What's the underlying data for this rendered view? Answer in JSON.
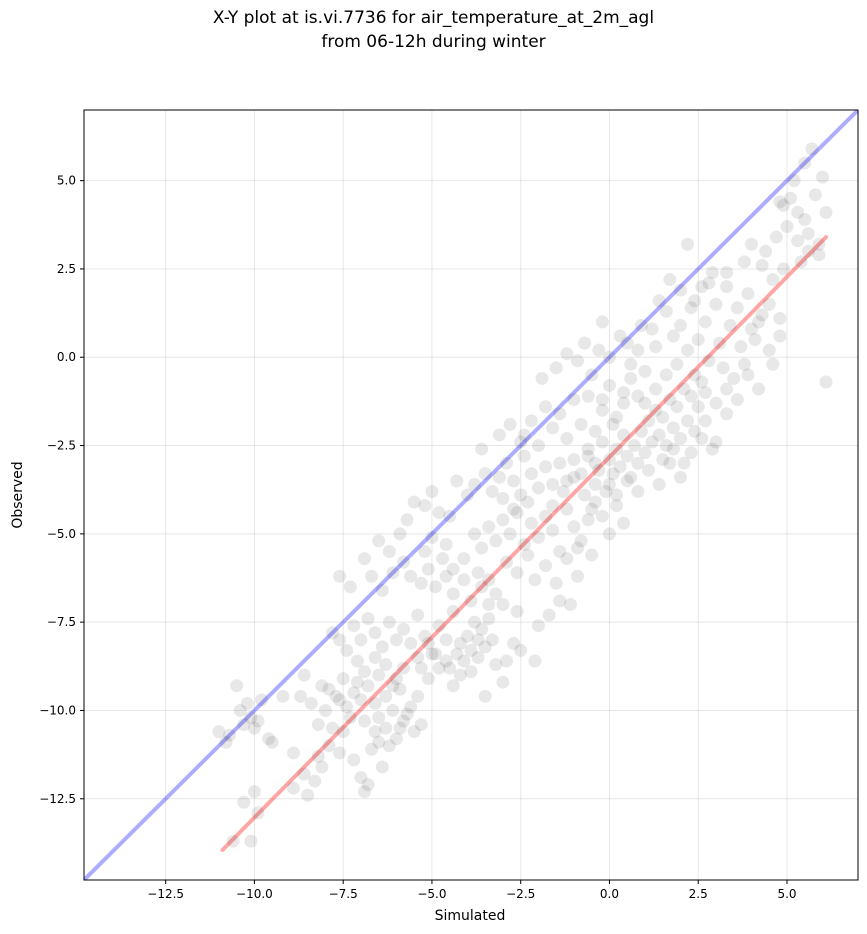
{
  "title_line1": "X-Y plot at is.vi.7736 for air_temperature_at_2m_agl",
  "title_line2": "from 06-12h during winter",
  "chart_data": {
    "type": "scatter",
    "xlabel": "Simulated",
    "ylabel": "Observed",
    "xlim": [
      -14.8,
      7.0
    ],
    "ylim": [
      -14.8,
      7.0
    ],
    "xticks": [
      -12.5,
      -10.0,
      -7.5,
      -5.0,
      -2.5,
      0.0,
      2.5,
      5.0
    ],
    "yticks": [
      -12.5,
      -10.0,
      -7.5,
      -5.0,
      -2.5,
      0.0,
      2.5,
      5.0
    ],
    "xtick_labels": [
      "−12.5",
      "−10.0",
      "−7.5",
      "−5.0",
      "−2.5",
      "0.0",
      "2.5",
      "5.0"
    ],
    "ytick_labels": [
      "−12.5",
      "−10.0",
      "−7.5",
      "−5.0",
      "−2.5",
      "0.0",
      "2.5",
      "5.0"
    ],
    "grid": true,
    "point_color": "#000000",
    "point_alpha": 0.09,
    "one_to_one_line": {
      "color": "#0000ff",
      "alpha": 0.32,
      "x": [
        -14.8,
        7.0
      ],
      "y": [
        -14.8,
        7.0
      ]
    },
    "fit_line": {
      "color": "#ff0000",
      "alpha": 0.35,
      "x": [
        -10.9,
        6.1
      ],
      "y": [
        -13.95,
        3.4
      ]
    },
    "points": [
      [
        -11.0,
        -10.6
      ],
      [
        -10.8,
        -10.9
      ],
      [
        -10.7,
        -10.7
      ],
      [
        -10.5,
        -9.3
      ],
      [
        -10.4,
        -10.0
      ],
      [
        -10.3,
        -10.4
      ],
      [
        -10.2,
        -9.8
      ],
      [
        -10.1,
        -10.2
      ],
      [
        -10.0,
        -10.5
      ],
      [
        -9.9,
        -10.3
      ],
      [
        -9.8,
        -9.7
      ],
      [
        -9.6,
        -10.8
      ],
      [
        -9.5,
        -10.9
      ],
      [
        -9.2,
        -9.6
      ],
      [
        -8.9,
        -11.2
      ],
      [
        -8.7,
        -9.6
      ],
      [
        -10.3,
        -12.6
      ],
      [
        -10.1,
        -13.7
      ],
      [
        -10.6,
        -13.7
      ],
      [
        -10.0,
        -12.3
      ],
      [
        -9.9,
        -12.9
      ],
      [
        -8.9,
        -12.2
      ],
      [
        -8.5,
        -12.4
      ],
      [
        -8.3,
        -12.0
      ],
      [
        -8.6,
        -11.8
      ],
      [
        -8.2,
        -11.3
      ],
      [
        -8.1,
        -11.6
      ],
      [
        -7.9,
        -11.0
      ],
      [
        -7.8,
        -10.5
      ],
      [
        -7.6,
        -11.2
      ],
      [
        -7.5,
        -10.6
      ],
      [
        -7.3,
        -10.2
      ],
      [
        -7.2,
        -11.4
      ],
      [
        -7.0,
        -11.9
      ],
      [
        -6.9,
        -12.3
      ],
      [
        -6.8,
        -12.1
      ],
      [
        -6.7,
        -11.1
      ],
      [
        -6.6,
        -10.6
      ],
      [
        -6.5,
        -10.9
      ],
      [
        -6.4,
        -11.6
      ],
      [
        -6.2,
        -11.0
      ],
      [
        -6.0,
        -10.8
      ],
      [
        -8.4,
        -9.8
      ],
      [
        -8.2,
        -10.4
      ],
      [
        -8.0,
        -10.0
      ],
      [
        -7.9,
        -9.4
      ],
      [
        -7.7,
        -9.6
      ],
      [
        -7.5,
        -9.1
      ],
      [
        -7.4,
        -9.9
      ],
      [
        -7.2,
        -9.5
      ],
      [
        -7.0,
        -9.7
      ],
      [
        -6.8,
        -9.3
      ],
      [
        -6.6,
        -9.8
      ],
      [
        -6.5,
        -10.2
      ],
      [
        -6.3,
        -9.6
      ],
      [
        -6.1,
        -10.0
      ],
      [
        -5.9,
        -9.4
      ],
      [
        -5.8,
        -10.3
      ],
      [
        -5.6,
        -9.9
      ],
      [
        -5.5,
        -10.6
      ],
      [
        -5.4,
        -9.6
      ],
      [
        -5.3,
        -10.4
      ],
      [
        -5.7,
        -10.1
      ],
      [
        -5.9,
        -10.5
      ],
      [
        -6.0,
        -9.1
      ],
      [
        -5.8,
        -8.8
      ],
      [
        -6.3,
        -8.7
      ],
      [
        -6.6,
        -8.5
      ],
      [
        -6.9,
        -8.9
      ],
      [
        -7.1,
        -8.6
      ],
      [
        -7.4,
        -8.3
      ],
      [
        -7.6,
        -8.0
      ],
      [
        -7.8,
        -7.8
      ],
      [
        -7.2,
        -7.6
      ],
      [
        -7.0,
        -8.0
      ],
      [
        -6.8,
        -7.4
      ],
      [
        -6.6,
        -7.8
      ],
      [
        -6.4,
        -8.2
      ],
      [
        -6.2,
        -7.5
      ],
      [
        -6.0,
        -8.0
      ],
      [
        -5.8,
        -7.7
      ],
      [
        -5.6,
        -8.1
      ],
      [
        -5.4,
        -7.3
      ],
      [
        -5.2,
        -7.9
      ],
      [
        -5.0,
        -8.4
      ],
      [
        -4.8,
        -7.6
      ],
      [
        -4.6,
        -8.0
      ],
      [
        -4.4,
        -7.2
      ],
      [
        -4.2,
        -8.1
      ],
      [
        -4.0,
        -7.9
      ],
      [
        -3.9,
        -8.3
      ],
      [
        -3.8,
        -7.5
      ],
      [
        -3.7,
        -8.0
      ],
      [
        -3.6,
        -7.7
      ],
      [
        -3.5,
        -8.2
      ],
      [
        -3.4,
        -7.4
      ],
      [
        -4.1,
        -8.6
      ],
      [
        -4.3,
        -8.4
      ],
      [
        -4.5,
        -8.8
      ],
      [
        -3.9,
        -8.9
      ],
      [
        -3.7,
        -8.5
      ],
      [
        -3.3,
        -8.0
      ],
      [
        -4.6,
        -8.6
      ],
      [
        -4.8,
        -8.8
      ],
      [
        -4.4,
        -9.3
      ],
      [
        -4.2,
        -9.0
      ],
      [
        -5.1,
        -9.1
      ],
      [
        -3.2,
        -8.7
      ],
      [
        -3.0,
        -9.2
      ],
      [
        -3.5,
        -9.6
      ],
      [
        -2.9,
        -8.6
      ],
      [
        -2.7,
        -8.1
      ],
      [
        -2.5,
        -8.3
      ],
      [
        -2.1,
        -8.6
      ],
      [
        -2.6,
        -7.2
      ],
      [
        -3.0,
        -7.0
      ],
      [
        -3.2,
        -6.7
      ],
      [
        -3.4,
        -7.0
      ],
      [
        -3.6,
        -6.5
      ],
      [
        -3.9,
        -6.9
      ],
      [
        -4.1,
        -6.3
      ],
      [
        -4.4,
        -6.7
      ],
      [
        -4.6,
        -6.2
      ],
      [
        -4.9,
        -6.5
      ],
      [
        -5.1,
        -6.0
      ],
      [
        -5.3,
        -6.4
      ],
      [
        -5.6,
        -6.2
      ],
      [
        -5.8,
        -5.8
      ],
      [
        -6.1,
        -6.1
      ],
      [
        -6.4,
        -6.6
      ],
      [
        -6.7,
        -6.2
      ],
      [
        -6.9,
        -5.7
      ],
      [
        -7.3,
        -6.5
      ],
      [
        -7.6,
        -6.2
      ],
      [
        -6.5,
        -5.2
      ],
      [
        -6.2,
        -5.5
      ],
      [
        -5.9,
        -5.0
      ],
      [
        -5.7,
        -4.6
      ],
      [
        -5.5,
        -4.1
      ],
      [
        -5.2,
        -4.2
      ],
      [
        -5.0,
        -3.8
      ],
      [
        -4.8,
        -4.4
      ],
      [
        -4.5,
        -4.5
      ],
      [
        -4.3,
        -3.5
      ],
      [
        -4.0,
        -3.9
      ],
      [
        -3.8,
        -3.6
      ],
      [
        -3.5,
        -3.3
      ],
      [
        -3.3,
        -3.8
      ],
      [
        -3.1,
        -3.4
      ],
      [
        -2.9,
        -3.0
      ],
      [
        -2.7,
        -3.5
      ],
      [
        -2.4,
        -2.8
      ],
      [
        -2.2,
        -3.3
      ],
      [
        -2.0,
        -3.7
      ],
      [
        -1.8,
        -3.1
      ],
      [
        -1.6,
        -3.6
      ],
      [
        -1.4,
        -3.0
      ],
      [
        -1.2,
        -3.5
      ],
      [
        -1.0,
        -2.9
      ],
      [
        -0.8,
        -3.3
      ],
      [
        -0.6,
        -2.8
      ],
      [
        -0.4,
        -3.6
      ],
      [
        -3.8,
        -5.0
      ],
      [
        -3.6,
        -5.4
      ],
      [
        -3.4,
        -4.8
      ],
      [
        -3.2,
        -5.2
      ],
      [
        -3.0,
        -4.6
      ],
      [
        -2.8,
        -5.0
      ],
      [
        -2.6,
        -4.4
      ],
      [
        -2.4,
        -5.3
      ],
      [
        -2.2,
        -4.7
      ],
      [
        -2.0,
        -5.1
      ],
      [
        -1.8,
        -4.5
      ],
      [
        -1.6,
        -4.9
      ],
      [
        -1.4,
        -5.5
      ],
      [
        -1.2,
        -4.3
      ],
      [
        -1.0,
        -4.8
      ],
      [
        -0.8,
        -5.2
      ],
      [
        -0.6,
        -4.6
      ],
      [
        -0.4,
        -4.1
      ],
      [
        -0.2,
        -4.5
      ],
      [
        0.0,
        -5.0
      ],
      [
        0.2,
        -4.2
      ],
      [
        0.4,
        -4.7
      ],
      [
        -2.9,
        -5.8
      ],
      [
        -2.6,
        -6.1
      ],
      [
        -2.3,
        -5.6
      ],
      [
        -2.1,
        -6.3
      ],
      [
        -1.8,
        -5.9
      ],
      [
        -1.5,
        -6.4
      ],
      [
        -1.2,
        -5.7
      ],
      [
        -0.9,
        -6.2
      ],
      [
        -1.4,
        -6.9
      ],
      [
        -1.7,
        -7.3
      ],
      [
        -2.0,
        -7.6
      ],
      [
        -1.1,
        -7.0
      ],
      [
        -0.9,
        -5.4
      ],
      [
        -0.5,
        -5.6
      ],
      [
        -2.4,
        -2.2
      ],
      [
        -2.2,
        -1.8
      ],
      [
        -2.0,
        -2.5
      ],
      [
        -1.8,
        -1.4
      ],
      [
        -1.6,
        -2.0
      ],
      [
        -1.4,
        -1.6
      ],
      [
        -1.2,
        -2.3
      ],
      [
        -1.0,
        -1.2
      ],
      [
        -0.8,
        -1.9
      ],
      [
        -0.6,
        -1.1
      ],
      [
        -0.4,
        -2.1
      ],
      [
        -0.2,
        -1.5
      ],
      [
        0.0,
        -0.8
      ],
      [
        0.2,
        -1.7
      ],
      [
        0.4,
        -1.3
      ],
      [
        0.6,
        -0.6
      ],
      [
        0.8,
        -1.1
      ],
      [
        1.0,
        -0.4
      ],
      [
        -1.9,
        -0.6
      ],
      [
        -1.5,
        -0.3
      ],
      [
        -1.2,
        0.1
      ],
      [
        -0.7,
        0.4
      ],
      [
        -0.2,
        1.0
      ],
      [
        0.3,
        0.6
      ],
      [
        0.8,
        0.2
      ],
      [
        1.2,
        0.8
      ],
      [
        1.6,
        1.3
      ],
      [
        2.0,
        0.9
      ],
      [
        2.4,
        1.6
      ],
      [
        2.8,
        2.1
      ],
      [
        -0.6,
        -2.6
      ],
      [
        -0.4,
        -3.0
      ],
      [
        -0.2,
        -2.4
      ],
      [
        0.0,
        -2.9
      ],
      [
        0.1,
        -3.3
      ],
      [
        0.2,
        -2.6
      ],
      [
        0.3,
        -3.1
      ],
      [
        0.4,
        -2.2
      ],
      [
        0.5,
        -2.8
      ],
      [
        0.6,
        -3.4
      ],
      [
        0.7,
        -2.5
      ],
      [
        0.8,
        -3.0
      ],
      [
        0.9,
        -2.1
      ],
      [
        1.0,
        -2.7
      ],
      [
        1.1,
        -1.8
      ],
      [
        1.2,
        -2.4
      ],
      [
        1.3,
        -1.5
      ],
      [
        1.4,
        -2.2
      ],
      [
        1.5,
        -1.7
      ],
      [
        1.6,
        -2.5
      ],
      [
        1.7,
        -1.2
      ],
      [
        1.8,
        -2.0
      ],
      [
        1.9,
        -1.4
      ],
      [
        2.0,
        -2.3
      ],
      [
        2.1,
        -0.9
      ],
      [
        2.2,
        -1.8
      ],
      [
        2.3,
        -1.1
      ],
      [
        2.4,
        -0.5
      ],
      [
        2.5,
        -1.4
      ],
      [
        2.6,
        -0.7
      ],
      [
        -0.3,
        -3.2
      ],
      [
        0.0,
        -3.6
      ],
      [
        0.2,
        -3.9
      ],
      [
        0.5,
        -3.5
      ],
      [
        0.8,
        -3.8
      ],
      [
        1.1,
        -3.2
      ],
      [
        1.4,
        -3.6
      ],
      [
        1.7,
        -3.0
      ],
      [
        2.0,
        -3.4
      ],
      [
        2.3,
        -2.7
      ],
      [
        2.6,
        -2.3
      ],
      [
        2.9,
        -2.6
      ],
      [
        1.0,
        -1.3
      ],
      [
        1.3,
        -0.9
      ],
      [
        1.6,
        -0.5
      ],
      [
        1.9,
        -0.2
      ],
      [
        2.2,
        0.2
      ],
      [
        2.5,
        0.5
      ],
      [
        2.8,
        -0.1
      ],
      [
        3.1,
        0.4
      ],
      [
        3.4,
        0.9
      ],
      [
        3.7,
        0.3
      ],
      [
        4.0,
        0.8
      ],
      [
        4.3,
        1.2
      ],
      [
        2.7,
        1.0
      ],
      [
        3.0,
        1.5
      ],
      [
        3.3,
        2.0
      ],
      [
        3.6,
        1.4
      ],
      [
        3.9,
        1.8
      ],
      [
        4.2,
        1.0
      ],
      [
        4.5,
        1.5
      ],
      [
        4.8,
        1.1
      ],
      [
        4.1,
        0.5
      ],
      [
        3.8,
        -0.2
      ],
      [
        3.5,
        -0.6
      ],
      [
        3.2,
        -0.3
      ],
      [
        2.9,
        2.4
      ],
      [
        2.6,
        2.0
      ],
      [
        2.3,
        1.4
      ],
      [
        2.0,
        1.9
      ],
      [
        1.7,
        2.2
      ],
      [
        1.4,
        1.6
      ],
      [
        2.2,
        3.2
      ],
      [
        3.3,
        2.4
      ],
      [
        3.8,
        2.7
      ],
      [
        4.0,
        3.2
      ],
      [
        4.4,
        3.0
      ],
      [
        4.7,
        3.4
      ],
      [
        5.0,
        3.7
      ],
      [
        5.3,
        3.3
      ],
      [
        5.6,
        3.0
      ],
      [
        5.9,
        2.9
      ],
      [
        5.4,
        2.7
      ],
      [
        4.9,
        2.5
      ],
      [
        4.6,
        2.2
      ],
      [
        4.3,
        2.6
      ],
      [
        4.8,
        4.4
      ],
      [
        5.1,
        4.5
      ],
      [
        5.3,
        4.1
      ],
      [
        5.5,
        3.9
      ],
      [
        5.7,
        5.9
      ],
      [
        5.5,
        5.5
      ],
      [
        5.2,
        5.0
      ],
      [
        4.9,
        4.3
      ],
      [
        5.8,
        4.6
      ],
      [
        6.0,
        5.1
      ],
      [
        5.9,
        3.2
      ],
      [
        5.6,
        3.5
      ],
      [
        6.1,
        4.1
      ],
      [
        6.1,
        -0.7
      ],
      [
        4.6,
        -0.2
      ],
      [
        3.3,
        -1.6
      ],
      [
        3.0,
        -2.4
      ],
      [
        2.7,
        -1.0
      ],
      [
        0.0,
        0.0
      ],
      [
        -0.3,
        0.2
      ],
      [
        -0.9,
        -0.1
      ],
      [
        0.5,
        0.4
      ],
      [
        -1.6,
        -4.2
      ],
      [
        -1.3,
        -3.8
      ],
      [
        -1.0,
        -3.4
      ],
      [
        -0.7,
        -3.9
      ],
      [
        -0.5,
        -4.3
      ],
      [
        -0.1,
        -3.8
      ],
      [
        -3.0,
        -4.0
      ],
      [
        -2.7,
        -4.3
      ],
      [
        -2.5,
        -3.9
      ],
      [
        -2.3,
        -4.1
      ],
      [
        -4.6,
        -5.3
      ],
      [
        -4.1,
        -5.7
      ],
      [
        -4.4,
        -6.0
      ],
      [
        -4.7,
        -5.7
      ],
      [
        -5.2,
        -5.5
      ],
      [
        -5.0,
        -5.1
      ],
      [
        -3.7,
        -6.1
      ],
      [
        -3.4,
        -6.3
      ],
      [
        -5.4,
        -8.5
      ],
      [
        -5.1,
        -8.1
      ],
      [
        -4.9,
        -8.4
      ],
      [
        -5.3,
        -8.8
      ],
      [
        -6.1,
        -9.3
      ],
      [
        -6.5,
        -9.0
      ],
      [
        -7.1,
        -9.2
      ],
      [
        -7.6,
        -9.7
      ],
      [
        -8.1,
        -9.3
      ],
      [
        -8.6,
        -9.0
      ],
      [
        -6.3,
        -10.5
      ],
      [
        -6.9,
        -10.3
      ],
      [
        -3.6,
        -2.6
      ],
      [
        -3.1,
        -2.2
      ],
      [
        -2.8,
        -1.9
      ],
      [
        -2.5,
        -2.4
      ],
      [
        0.6,
        -0.2
      ],
      [
        0.9,
        0.9
      ],
      [
        1.3,
        0.3
      ],
      [
        1.8,
        0.6
      ],
      [
        0.4,
        -1.0
      ],
      [
        0.1,
        -1.9
      ],
      [
        -0.2,
        -1.2
      ],
      [
        -0.5,
        -0.5
      ],
      [
        1.5,
        -2.9
      ],
      [
        1.8,
        -2.6
      ],
      [
        2.1,
        -3.0
      ],
      [
        2.4,
        -2.1
      ],
      [
        2.7,
        -1.8
      ],
      [
        3.0,
        -1.3
      ],
      [
        3.3,
        -0.9
      ],
      [
        3.6,
        -1.2
      ],
      [
        3.9,
        -0.5
      ],
      [
        4.2,
        -0.9
      ],
      [
        4.5,
        0.2
      ],
      [
        4.8,
        0.6
      ]
    ]
  }
}
